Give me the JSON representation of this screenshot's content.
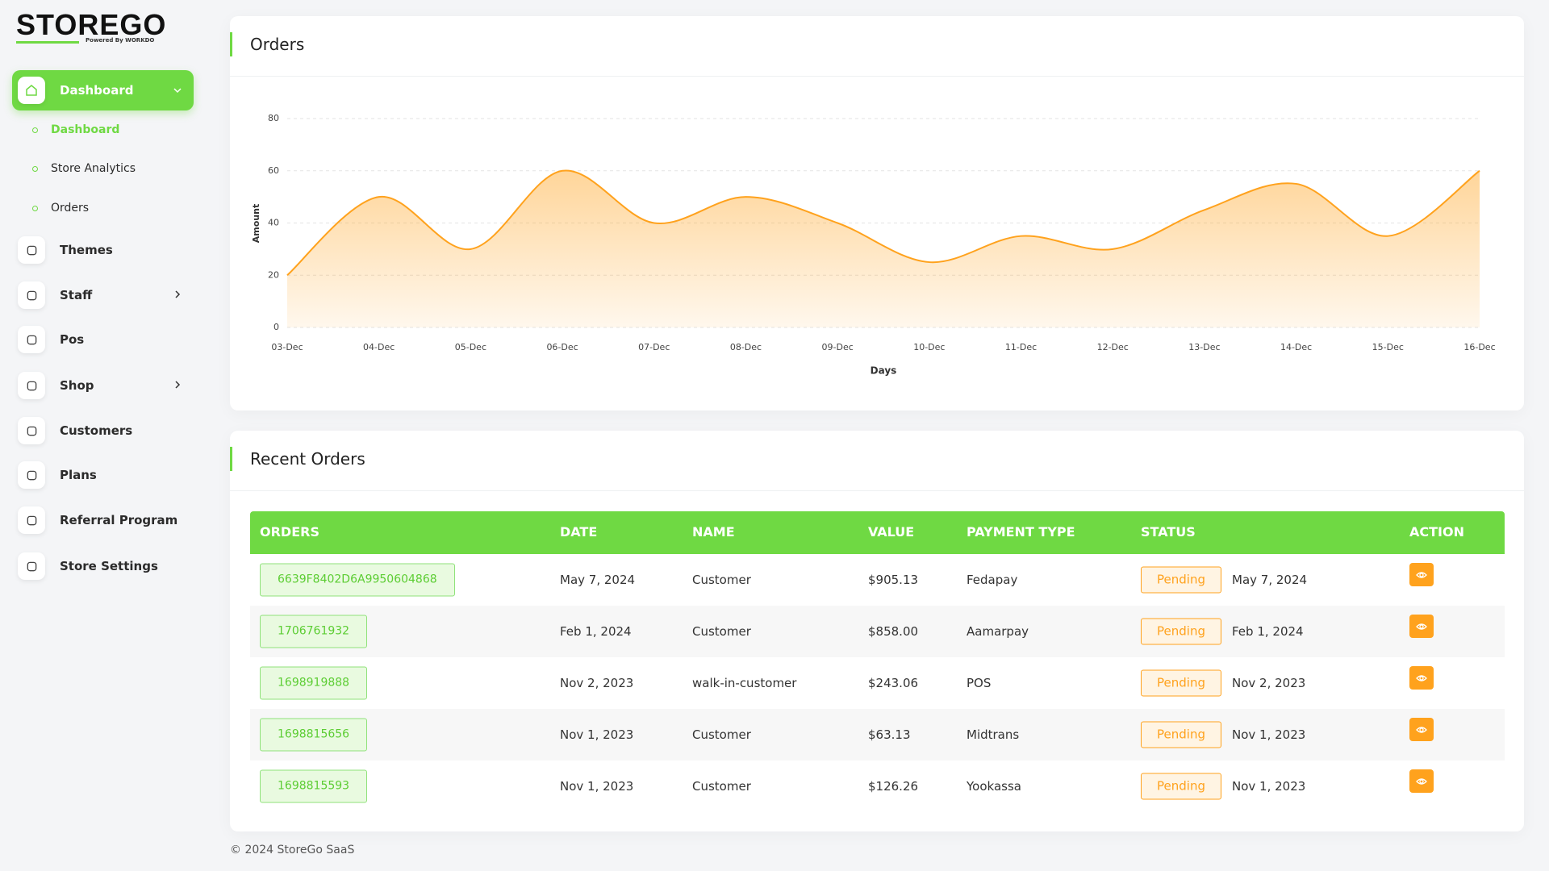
{
  "brand": {
    "name": "STOREGO",
    "tagline": "Powered By WORKDO"
  },
  "nav": {
    "items": [
      {
        "label": "Dashboard",
        "children": [
          "Dashboard",
          "Store Analytics",
          "Orders"
        ]
      },
      {
        "label": "Themes"
      },
      {
        "label": "Staff"
      },
      {
        "label": "Pos"
      },
      {
        "label": "Shop"
      },
      {
        "label": "Customers"
      },
      {
        "label": "Plans"
      },
      {
        "label": "Referral Program"
      },
      {
        "label": "Store Settings"
      }
    ]
  },
  "chart_data": {
    "type": "area",
    "title": "Orders",
    "x_label": "Days",
    "y_label": "Amount",
    "categories": [
      "03-Dec",
      "04-Dec",
      "05-Dec",
      "06-Dec",
      "07-Dec",
      "08-Dec",
      "09-Dec",
      "10-Dec",
      "11-Dec",
      "12-Dec",
      "13-Dec",
      "14-Dec",
      "15-Dec",
      "16-Dec"
    ],
    "values": [
      20,
      50,
      30,
      60,
      40,
      50,
      40,
      25,
      35,
      30,
      45,
      55,
      35,
      60
    ],
    "color": "#ffa21d",
    "ylim": [
      0,
      80
    ],
    "yticks": [
      0,
      20,
      40,
      60,
      80
    ],
    "grid": true
  },
  "recent_orders": {
    "title": "Recent Orders",
    "columns": [
      "ORDERS",
      "DATE",
      "NAME",
      "VALUE",
      "PAYMENT TYPE",
      "STATUS",
      "ACTION"
    ],
    "rows": [
      [
        "6639F8402D6A9950604868",
        "May 7, 2024",
        "Customer",
        "$905.13",
        "Fedapay",
        "Pending",
        "May 7, 2024"
      ],
      [
        "1706761932",
        "Feb 1, 2024",
        "Customer",
        "$858.00",
        "Aamarpay",
        "Pending",
        "Feb 1, 2024"
      ],
      [
        "1698919888",
        "Nov 2, 2023",
        "walk-in-customer",
        "$243.06",
        "POS",
        "Pending",
        "Nov 2, 2023"
      ],
      [
        "1698815656",
        "Nov 1, 2023",
        "Customer",
        "$63.13",
        "Midtrans",
        "Pending",
        "Nov 1, 2023"
      ],
      [
        "1698815593",
        "Nov 1, 2023",
        "Customer",
        "$126.26",
        "Yookassa",
        "Pending",
        "Nov 1, 2023"
      ]
    ]
  },
  "footer": "© 2024 StoreGo SaaS"
}
